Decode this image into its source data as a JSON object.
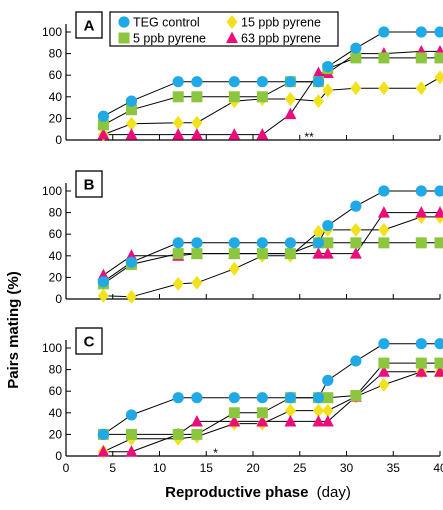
{
  "chart_data": {
    "type": "line",
    "xlabel_bold": "Reproductive phase",
    "xlabel_unit": "(day)",
    "ylabel": "Pairs mating (%)",
    "xlim": [
      0,
      40
    ],
    "ylim": [
      0,
      100
    ],
    "xticks": [
      "0",
      "5",
      "10",
      "15",
      "20",
      "25",
      "30",
      "35",
      "40"
    ],
    "yticks": [
      "0",
      "20",
      "40",
      "60",
      "80",
      "100"
    ],
    "legend": [
      {
        "name": "TEG control",
        "color": "#1fa9e6",
        "marker": "circle"
      },
      {
        "name": "15 ppb pyrene",
        "color": "#f2e21c",
        "marker": "diamond"
      },
      {
        "name": "5 ppb pyrene",
        "color": "#8cc63f",
        "marker": "square"
      },
      {
        "name": "63 ppb pyrene",
        "color": "#ec0c7c",
        "marker": "triangle"
      }
    ],
    "panels": [
      {
        "label": "A",
        "annotation": {
          "text": "**",
          "x": 26,
          "y": 3
        },
        "series": [
          {
            "name": "TEG control",
            "x": [
              4,
              7,
              12,
              14,
              18,
              21,
              24,
              27,
              28,
              31,
              34,
              38,
              40
            ],
            "y": [
              22,
              36,
              54,
              54,
              54,
              54,
              54,
              54,
              68,
              85,
              100,
              100,
              100
            ]
          },
          {
            "name": "5 ppb pyrene",
            "x": [
              4,
              7,
              12,
              14,
              18,
              21,
              24,
              27,
              28,
              31,
              34,
              38,
              40
            ],
            "y": [
              14,
              28,
              40,
              40,
              40,
              40,
              54,
              54,
              66,
              76,
              76,
              76,
              76
            ]
          },
          {
            "name": "15 ppb pyrene",
            "x": [
              4,
              7,
              12,
              14,
              18,
              21,
              24,
              27,
              28,
              31,
              34,
              38,
              40
            ],
            "y": [
              5,
              15,
              16,
              16,
              36,
              38,
              38,
              36,
              46,
              48,
              48,
              48,
              58
            ]
          },
          {
            "name": "63 ppb pyrene",
            "x": [
              4,
              7,
              12,
              14,
              18,
              21,
              24,
              27,
              28,
              31,
              34,
              38,
              40
            ],
            "y": [
              5,
              5,
              5,
              5,
              5,
              5,
              24,
              62,
              62,
              80,
              80,
              82,
              82
            ]
          }
        ]
      },
      {
        "label": "B",
        "annotation": null,
        "series": [
          {
            "name": "TEG control",
            "x": [
              4,
              7,
              12,
              14,
              18,
              21,
              24,
              27,
              28,
              31,
              34,
              38,
              40
            ],
            "y": [
              16,
              34,
              52,
              52,
              52,
              52,
              52,
              52,
              68,
              86,
              100,
              100,
              100
            ]
          },
          {
            "name": "5 ppb pyrene",
            "x": [
              4,
              7,
              12,
              14,
              18,
              21,
              24,
              27,
              28,
              31,
              34,
              38,
              40
            ],
            "y": [
              14,
              32,
              42,
              42,
              42,
              42,
              42,
              52,
              52,
              52,
              52,
              52,
              52
            ]
          },
          {
            "name": "15 ppb pyrene",
            "x": [
              4,
              7,
              12,
              14,
              18,
              21,
              24,
              27,
              28,
              31,
              34,
              38,
              40
            ],
            "y": [
              3,
              2,
              14,
              15,
              28,
              40,
              40,
              62,
              64,
              64,
              64,
              76,
              76
            ]
          },
          {
            "name": "63 ppb pyrene",
            "x": [
              4,
              7,
              12,
              14,
              18,
              21,
              24,
              27,
              28,
              31,
              34,
              38,
              40
            ],
            "y": [
              22,
              40,
              40,
              42,
              42,
              42,
              42,
              42,
              42,
              42,
              80,
              80,
              80
            ]
          }
        ]
      },
      {
        "label": "C",
        "annotation": {
          "text": "*",
          "x": 16,
          "y": 3
        },
        "series": [
          {
            "name": "TEG control",
            "x": [
              4,
              7,
              12,
              14,
              18,
              21,
              24,
              27,
              28,
              31,
              34,
              38,
              40
            ],
            "y": [
              20,
              38,
              54,
              54,
              54,
              54,
              54,
              54,
              70,
              88,
              104,
              104,
              104
            ]
          },
          {
            "name": "5 ppb pyrene",
            "x": [
              4,
              7,
              12,
              14,
              18,
              21,
              24,
              27,
              28,
              31,
              34,
              38,
              40
            ],
            "y": [
              20,
              20,
              20,
              20,
              40,
              40,
              54,
              54,
              54,
              56,
              86,
              86,
              86
            ]
          },
          {
            "name": "15 ppb pyrene",
            "x": [
              4,
              7,
              12,
              14,
              18,
              21,
              24,
              27,
              28,
              31,
              34,
              38,
              40
            ],
            "y": [
              4,
              16,
              16,
              18,
              30,
              30,
              42,
              42,
              42,
              55,
              66,
              78,
              78
            ]
          },
          {
            "name": "63 ppb pyrene",
            "x": [
              4,
              7,
              12,
              14,
              18,
              21,
              24,
              27,
              28,
              31,
              34,
              38,
              40
            ],
            "y": [
              4,
              4,
              20,
              32,
              32,
              32,
              32,
              32,
              32,
              55,
              78,
              78,
              78
            ]
          }
        ]
      }
    ]
  }
}
